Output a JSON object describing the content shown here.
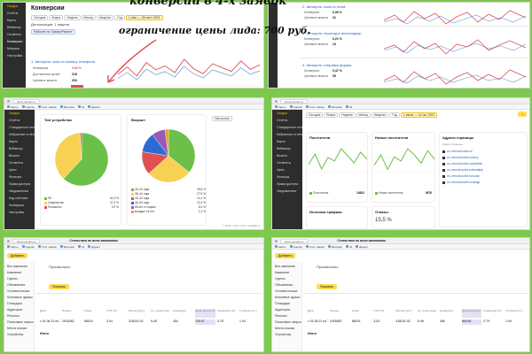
{
  "colors": {
    "background": "#7ec850",
    "accent_yellow": "#ffdb4d",
    "link_blue": "#2060c0",
    "series_red": "#e05050",
    "series_blue": "#2a6cd3",
    "chart_green": "#6cc04a"
  },
  "overlay": {
    "line1": "конверсий в 4-х заявок",
    "line2": "ограничение цены лида: 700 руб."
  },
  "p1": {
    "title": "Конверсии",
    "tabs": [
      "Сегодня",
      "Вчера",
      "Неделя",
      "Месяц",
      "Квартал",
      "Год"
    ],
    "date_range": "1 июн — 30 сент 2021",
    "detail": "Детализация: 1 неделя",
    "segment_tag": "Рабочее по 'Замер/Ремонт'",
    "goal_title": "1. Автоцель: клик по номеру телефона",
    "rows": [
      {
        "label": "Конверсия",
        "value": "0,84 %"
      },
      {
        "label": "Достижения целей",
        "value": "318"
      },
      {
        "label": "Целевые визиты",
        "value": "254"
      }
    ],
    "sidebar": [
      "Сводка",
      "Отчёты",
      "Карты",
      "Вебвизор",
      "Сегменты",
      "Конверсии",
      "Метрика",
      "Настройки"
    ]
  },
  "p2": {
    "goals": [
      {
        "title": "2. Автоцель: клик по email",
        "rows": [
          {
            "label": "Конверсия",
            "value": "0,36 %"
          },
          {
            "label": "Целевые визиты",
            "value": "41"
          }
        ]
      },
      {
        "title": "3. Автоцель: переход в мессенджер",
        "rows": [
          {
            "label": "Конверсия",
            "value": "0,21 %"
          },
          {
            "label": "Целевые визиты",
            "value": "24"
          }
        ]
      },
      {
        "title": "4. Автоцель: отправка формы",
        "rows": [
          {
            "label": "Конверсия",
            "value": "0,47 %"
          },
          {
            "label": "Целевые визиты",
            "value": "55"
          }
        ]
      }
    ]
  },
  "p3": {
    "url": "direct.yandex.ru",
    "bookmarks": [
      "Карты",
      "Сделки",
      "Стат. заявок",
      "Метрика",
      "Vk",
      "Директ",
      "Конверсии",
      "Рекламный кабинет"
    ],
    "sidebar": [
      "Сводка",
      "Отчёты",
      "Стандартные отчёты",
      "Избранные отчёты",
      "Карты",
      "Вебвизор",
      "Визиты",
      "Сегменты",
      "Цели",
      "Фильтры",
      "Права доступа",
      "Уведомления",
      "Код счётчика",
      "Конверсии",
      "Настройки",
      "Помощь",
      "Свернуть"
    ],
    "device_card_title": "Тип устройства",
    "age_card_title": "Возраст",
    "age_card_action": "Настроить",
    "device_legend": [
      {
        "label": "ПК",
        "value": "61,9 %"
      },
      {
        "label": "Смартфоны",
        "value": "37,2 %"
      },
      {
        "label": "Планшеты",
        "value": "0,9 %"
      }
    ],
    "age_legend": [
      {
        "label": "25–34 года",
        "value": "35,8 %"
      },
      {
        "label": "35–44 года",
        "value": "27,5 %"
      },
      {
        "label": "18–24 года",
        "value": "14,1 %"
      },
      {
        "label": "45–54 года",
        "value": "12,3 %"
      },
      {
        "label": "55 лет и старше",
        "value": "8,2 %"
      },
      {
        "label": "младше 18 лет",
        "value": "2,1 %"
      }
    ],
    "footer": "© 2008—2021 ООО «ЯНДЕКС»"
  },
  "p4": {
    "tabs": [
      "Сегодня",
      "Вчера",
      "Неделя",
      "Месяц",
      "Квартал",
      "Год"
    ],
    "date_range": "1 июля — 14 окт 2021",
    "visitors_title": "Посетители",
    "visitors_value": "10832",
    "visitors_legend": "Посетители",
    "new_visitors_title": "Новые посетители",
    "new_visitors_value": "9876",
    "new_visitors_legend": "Новые посетители",
    "addresses_title": "Адреса страницы",
    "addresses_sub": "Адрес страницы",
    "addresses": [
      "xn--remont-kuhni.ru/",
      "xn--remont-kuhni.ru/ceny",
      "xn--remont-kuhni.ru/portfolio",
      "xn--remont-kuhni.ru/kontakty",
      "xn--remont-kuhni.ru/o-nas",
      "xn--remont-kuhni.ru/uslugi"
    ],
    "traffic_title": "Источник трафика",
    "bounce_title": "Отказы",
    "bounce_value": "15,5 %"
  },
  "p5": {
    "title": "Статистика по всем кампаниям",
    "add_button": "Добавить",
    "period_label": "Произвольно",
    "show_button": "Показать",
    "left_list": [
      "Все кампании",
      "Кампании",
      "Группы",
      "Объявления",
      "Условия показа",
      "Ключевые фразы",
      "Площадки",
      "Аудитории",
      "Регионы",
      "Поисковые запросы",
      "Места показа",
      "Устройства",
      "Условия подбора",
      "Мобильные",
      "Конверсии",
      "Документы"
    ],
    "columns": [
      "Дата",
      "Показы",
      "Клики",
      "CTR (%)",
      "Расход (руб.)",
      "Ср. цена клика",
      "Конверсии",
      "Цена цели (руб.)",
      "Конверсия (%)",
      "Глубина (стр.)"
    ],
    "row": [
      "с 01.06.21 по 15.10.21",
      "1918452",
      "58419",
      "3.04",
      "318241.92",
      "5.45",
      "454",
      "700.97",
      "0.78",
      "1.94"
    ],
    "total_label": "Итого"
  },
  "p6": {
    "title": "Статистика по всем кампаниям",
    "add_button": "Добавить",
    "period_label": "Произвольно",
    "show_button": "Показать",
    "left_list": [
      "Все кампании",
      "Кампании",
      "Группы",
      "Объявления",
      "Условия показа",
      "Ключевые фразы",
      "Площадки",
      "Аудитории",
      "Регионы",
      "Поисковые запросы",
      "Места показа",
      "Устройства",
      "Условия подбора",
      "Мобильные",
      "Конверсии",
      "Документы"
    ],
    "columns": [
      "Дата",
      "Показы",
      "Клики",
      "CTR (%)",
      "Расход (руб.)",
      "Ср. цена клика",
      "Конверсии",
      "Цена цели (руб.)",
      "Конверсия (%)",
      "Глубина (стр.)"
    ],
    "row": [
      "с 01.06.21 по 15.10.21",
      "1918452",
      "58419",
      "3.04",
      "318241.92",
      "5.45",
      "458",
      "694.85",
      "0.79",
      "1.94"
    ],
    "total_label": "Итого"
  },
  "chart_data": [
    {
      "type": "line",
      "x": [
        1,
        2,
        3,
        4,
        5,
        6,
        7,
        8,
        9,
        10,
        11,
        12,
        13,
        14,
        15,
        16
      ],
      "series": [
        {
          "name": "Конверсия",
          "values": [
            2.1,
            3.4,
            1.8,
            4.2,
            2.9,
            3.6,
            2.4,
            4.8,
            3.1,
            2.2,
            4.0,
            3.3,
            2.6,
            4.5,
            3.0,
            3.8
          ]
        }
      ]
    },
    {
      "type": "pie",
      "labels": [
        "ПК",
        "Смартфоны",
        "Планшеты"
      ],
      "values": [
        61.9,
        37.2,
        0.9
      ]
    },
    {
      "type": "pie",
      "labels": [
        "25–34 года",
        "35–44 года",
        "18–24 года",
        "45–54 года",
        "55 лет и старше",
        "младше 18 лет"
      ],
      "values": [
        35.8,
        27.5,
        14.1,
        12.3,
        8.2,
        2.1
      ]
    },
    {
      "type": "line",
      "x": [
        1,
        2,
        3,
        4,
        5,
        6,
        7,
        8,
        9,
        10
      ],
      "series": [
        {
          "name": "Посетители",
          "values": [
            120,
            180,
            95,
            160,
            140,
            210,
            170,
            130,
            190,
            150
          ]
        }
      ]
    },
    {
      "type": "line",
      "x": [
        1,
        2,
        3,
        4,
        5,
        6,
        7,
        8,
        9,
        10
      ],
      "series": [
        {
          "name": "Новые посетители",
          "values": [
            100,
            150,
            80,
            140,
            120,
            180,
            150,
            110,
            170,
            130
          ]
        }
      ]
    }
  ]
}
